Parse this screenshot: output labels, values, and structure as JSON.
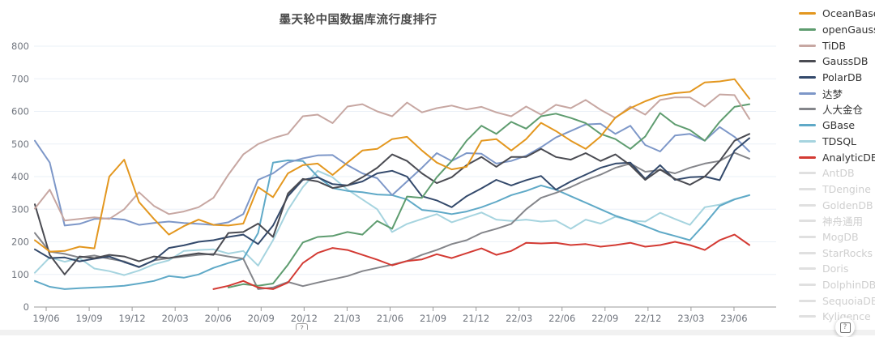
{
  "page": {
    "background": "#ffffff"
  },
  "icons": {
    "help_glyph": "?"
  },
  "chart_data": {
    "type": "line",
    "title": "墨天轮中国数据库流行度排行",
    "xlabel": "",
    "ylabel": "",
    "ylim": [
      0,
      800
    ],
    "grid": true,
    "legend_position": "right",
    "y_ticks": [
      0,
      100,
      200,
      300,
      400,
      500,
      600,
      700,
      800
    ],
    "x_tick_labels": [
      "19/06",
      "19/09",
      "19/12",
      "20/03",
      "20/06",
      "20/09",
      "20/12",
      "21/03",
      "21/06",
      "21/09",
      "21/12",
      "22/03",
      "22/06",
      "22/09",
      "22/12",
      "23/03",
      "23/06"
    ],
    "x_tick_month_indices": [
      0,
      3,
      6,
      9,
      12,
      15,
      18,
      21,
      24,
      27,
      30,
      33,
      36,
      39,
      42,
      45,
      48
    ],
    "months_count": 49,
    "series": [
      {
        "name": "OceanBase",
        "color": "#E3971F",
        "enabled": true,
        "values": [
          205,
          170,
          172,
          185,
          180,
          400,
          452,
          322,
          270,
          222,
          248,
          268,
          252,
          250,
          256,
          368,
          337,
          410,
          435,
          440,
          405,
          443,
          480,
          485,
          515,
          522,
          480,
          443,
          422,
          430,
          510,
          515,
          480,
          515,
          565,
          540,
          510,
          485,
          523,
          581,
          610,
          631,
          648,
          656,
          660,
          689,
          692,
          699,
          639
        ]
      },
      {
        "name": "openGauss",
        "color": "#5E9C6F",
        "enabled": true,
        "values": [
          null,
          null,
          null,
          null,
          null,
          null,
          null,
          null,
          null,
          null,
          null,
          null,
          null,
          60,
          70,
          65,
          72,
          130,
          198,
          215,
          218,
          230,
          222,
          264,
          240,
          339,
          335,
          398,
          448,
          510,
          556,
          531,
          568,
          547,
          585,
          593,
          580,
          564,
          531,
          515,
          485,
          523,
          595,
          560,
          543,
          510,
          568,
          614,
          622
        ]
      },
      {
        "name": "TiDB",
        "color": "#C7A7A2",
        "enabled": true,
        "values": [
          302,
          360,
          265,
          270,
          275,
          270,
          300,
          352,
          310,
          285,
          293,
          306,
          335,
          406,
          468,
          500,
          518,
          531,
          585,
          590,
          564,
          615,
          622,
          600,
          585,
          627,
          597,
          610,
          618,
          606,
          614,
          597,
          585,
          615,
          590,
          620,
          610,
          635,
          605,
          580,
          615,
          590,
          635,
          643,
          643,
          615,
          652,
          650,
          577
        ]
      },
      {
        "name": "GaussDB",
        "color": "#4A4B52",
        "enabled": true,
        "values": [
          315,
          160,
          100,
          155,
          150,
          160,
          155,
          140,
          155,
          150,
          158,
          165,
          160,
          227,
          230,
          256,
          215,
          348,
          393,
          385,
          365,
          373,
          398,
          427,
          468,
          448,
          410,
          380,
          398,
          435,
          460,
          430,
          460,
          460,
          485,
          460,
          452,
          472,
          448,
          468,
          435,
          390,
          422,
          393,
          375,
          400,
          448,
          510,
          531
        ]
      },
      {
        "name": "PolarDB",
        "color": "#33496B",
        "enabled": true,
        "values": [
          177,
          150,
          152,
          140,
          148,
          155,
          138,
          123,
          143,
          181,
          189,
          200,
          205,
          215,
          222,
          193,
          250,
          340,
          390,
          398,
          377,
          373,
          385,
          410,
          418,
          400,
          340,
          327,
          306,
          340,
          364,
          390,
          373,
          389,
          402,
          360,
          385,
          406,
          427,
          440,
          443,
          393,
          435,
          390,
          398,
          400,
          389,
          480,
          518
        ]
      },
      {
        "name": "达梦",
        "color": "#7D97C8",
        "enabled": true,
        "values": [
          510,
          443,
          250,
          255,
          270,
          272,
          268,
          252,
          258,
          262,
          258,
          255,
          252,
          260,
          285,
          390,
          410,
          443,
          456,
          465,
          466,
          435,
          410,
          395,
          343,
          385,
          427,
          472,
          448,
          472,
          470,
          440,
          448,
          464,
          490,
          520,
          540,
          560,
          562,
          531,
          556,
          497,
          477,
          526,
          531,
          510,
          552,
          522,
          477
        ]
      },
      {
        "name": "人大金仓",
        "color": "#84858A",
        "enabled": true,
        "values": [
          227,
          170,
          163,
          152,
          158,
          148,
          140,
          122,
          143,
          150,
          155,
          160,
          163,
          155,
          148,
          55,
          60,
          77,
          64,
          75,
          85,
          95,
          110,
          120,
          130,
          141,
          160,
          175,
          193,
          205,
          227,
          240,
          255,
          300,
          335,
          350,
          368,
          389,
          406,
          427,
          440,
          415,
          420,
          410,
          427,
          440,
          448,
          473,
          455
        ]
      },
      {
        "name": "GBase",
        "color": "#5FA9C7",
        "enabled": true,
        "values": [
          80,
          62,
          55,
          58,
          60,
          62,
          65,
          72,
          80,
          95,
          90,
          100,
          120,
          135,
          148,
          227,
          443,
          450,
          448,
          400,
          365,
          356,
          352,
          345,
          343,
          330,
          298,
          293,
          285,
          293,
          306,
          323,
          343,
          356,
          373,
          360,
          340,
          320,
          300,
          280,
          265,
          248,
          230,
          218,
          205,
          255,
          310,
          330,
          343
        ]
      },
      {
        "name": "TDSQL",
        "color": "#A6D4DF",
        "enabled": true,
        "values": [
          105,
          152,
          139,
          150,
          118,
          110,
          98,
          112,
          131,
          143,
          172,
          175,
          177,
          164,
          172,
          127,
          205,
          298,
          368,
          418,
          398,
          360,
          330,
          300,
          230,
          255,
          270,
          285,
          260,
          275,
          290,
          268,
          264,
          268,
          262,
          265,
          240,
          268,
          256,
          277,
          265,
          262,
          289,
          270,
          252,
          306,
          314,
          331,
          343
        ]
      },
      {
        "name": "AnalyticDB",
        "color": "#D33A33",
        "enabled": true,
        "values": [
          null,
          null,
          null,
          null,
          null,
          null,
          null,
          null,
          null,
          null,
          null,
          null,
          55,
          65,
          80,
          60,
          55,
          75,
          135,
          166,
          181,
          175,
          160,
          145,
          128,
          141,
          146,
          162,
          150,
          165,
          180,
          160,
          172,
          197,
          195,
          197,
          190,
          193,
          185,
          190,
          197,
          185,
          190,
          200,
          190,
          175,
          205,
          222,
          190
        ]
      }
    ],
    "disabled_series": [
      "AntDB",
      "TDengine",
      "GoldenDB",
      "神舟通用",
      "MogDB",
      "StarRocks",
      "Doris",
      "DolphinDB",
      "SequoiaDB",
      "Kyligence"
    ]
  }
}
